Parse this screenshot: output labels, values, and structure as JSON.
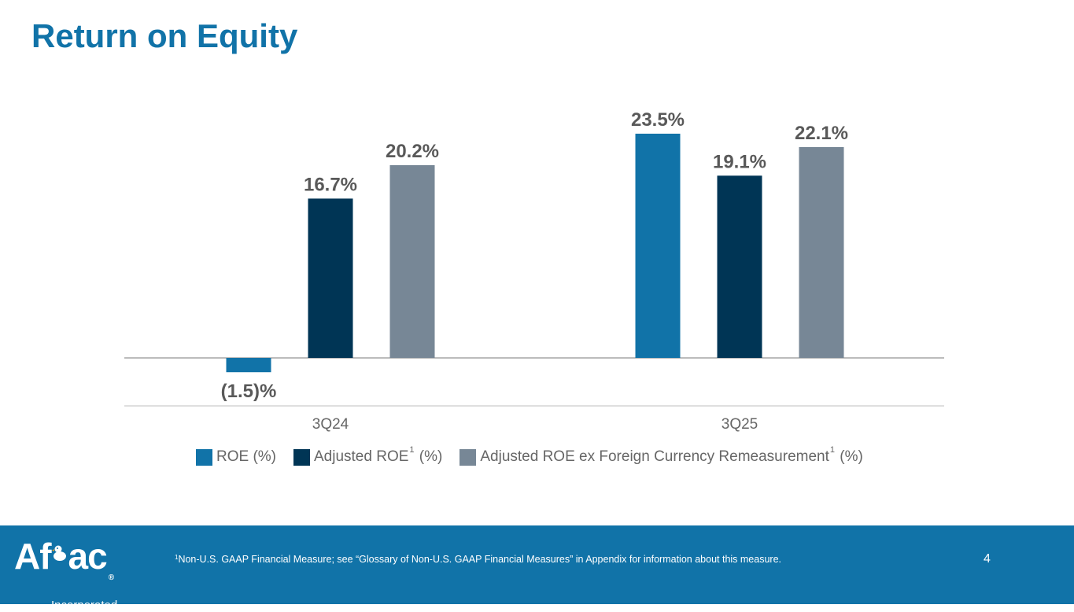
{
  "page": {
    "title": "Return on Equity"
  },
  "chart_data": {
    "type": "bar",
    "categories": [
      "3Q24",
      "3Q25"
    ],
    "series": [
      {
        "name": "ROE (%)",
        "color": "#1173a8",
        "values": [
          -1.5,
          23.5
        ],
        "labels": [
          "(1.5)%",
          "23.5%"
        ]
      },
      {
        "name": "Adjusted ROE",
        "sup": "1",
        "suffix": " (%)",
        "color": "#003555",
        "values": [
          16.7,
          19.1
        ],
        "labels": [
          "16.7%",
          "19.1%"
        ]
      },
      {
        "name": "Adjusted ROE ex Foreign Currency Remeasurement",
        "sup": "1",
        "suffix": " (%)",
        "color": "#778796",
        "values": [
          20.2,
          22.1
        ],
        "labels": [
          "20.2%",
          "22.1%"
        ]
      }
    ],
    "legend_position": "bottom",
    "grid": false
  },
  "footer": {
    "logo_text_a": "Af",
    "logo_text_b": "ac",
    "logo_registered": "®",
    "logo_subtitle": "Incorporated",
    "footnote_sup": "1",
    "footnote": "Non-U.S. GAAP Financial Measure; see “Glossary of Non-U.S. GAAP Financial Measures” in Appendix for information about this measure.",
    "page_number": "4"
  }
}
